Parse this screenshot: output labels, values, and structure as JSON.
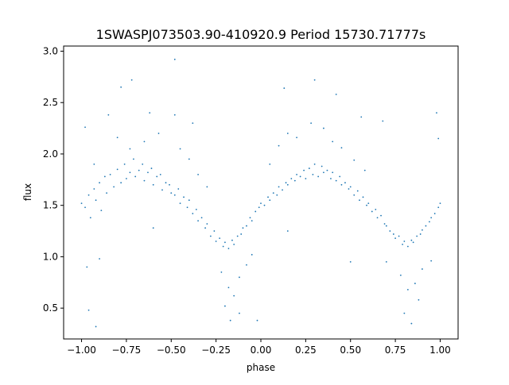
{
  "chart_data": {
    "type": "scatter",
    "title": "1SWASPJ073503.90-410920.9 Period 15730.71777s",
    "xlabel": "phase",
    "ylabel": "flux",
    "xlim": [
      -1.1,
      1.1
    ],
    "ylim": [
      0.2,
      3.05
    ],
    "xticks": [
      {
        "value": -1.0,
        "label": "−1.00"
      },
      {
        "value": -0.75,
        "label": "−0.75"
      },
      {
        "value": -0.5,
        "label": "−0.50"
      },
      {
        "value": -0.25,
        "label": "−0.25"
      },
      {
        "value": 0.0,
        "label": "0.00"
      },
      {
        "value": 0.25,
        "label": "0.25"
      },
      {
        "value": 0.5,
        "label": "0.50"
      },
      {
        "value": 0.75,
        "label": "0.75"
      },
      {
        "value": 1.0,
        "label": "1.00"
      }
    ],
    "yticks": [
      {
        "value": 0.5,
        "label": "0.5"
      },
      {
        "value": 1.0,
        "label": "1.0"
      },
      {
        "value": 1.5,
        "label": "1.5"
      },
      {
        "value": 2.0,
        "label": "2.0"
      },
      {
        "value": 2.5,
        "label": "2.5"
      },
      {
        "value": 3.0,
        "label": "3.0"
      }
    ],
    "grid": false,
    "legend": "none",
    "point_color": "#1f77b4",
    "series": [
      {
        "points": [
          [
            -1.0,
            1.52
          ],
          [
            -0.98,
            1.48
          ],
          [
            -0.96,
            1.6
          ],
          [
            -0.95,
            1.38
          ],
          [
            -0.93,
            1.66
          ],
          [
            -0.92,
            1.55
          ],
          [
            -0.9,
            1.72
          ],
          [
            -0.89,
            1.45
          ],
          [
            -0.87,
            1.78
          ],
          [
            -0.86,
            1.62
          ],
          [
            -0.84,
            1.8
          ],
          [
            -0.82,
            1.68
          ],
          [
            -0.8,
            1.85
          ],
          [
            -0.78,
            1.72
          ],
          [
            -0.76,
            1.9
          ],
          [
            -0.75,
            1.76
          ],
          [
            -0.73,
            1.82
          ],
          [
            -0.71,
            1.95
          ],
          [
            -0.7,
            1.78
          ],
          [
            -0.68,
            1.84
          ],
          [
            -0.66,
            1.9
          ],
          [
            -0.65,
            1.74
          ],
          [
            -0.63,
            1.82
          ],
          [
            -0.61,
            1.86
          ],
          [
            -0.6,
            1.7
          ],
          [
            -0.58,
            1.78
          ],
          [
            -0.56,
            1.8
          ],
          [
            -0.55,
            1.65
          ],
          [
            -0.53,
            1.72
          ],
          [
            -0.51,
            1.7
          ],
          [
            -0.5,
            1.62
          ],
          [
            -0.48,
            1.6
          ],
          [
            -0.46,
            1.66
          ],
          [
            -0.45,
            1.52
          ],
          [
            -0.43,
            1.58
          ],
          [
            -0.41,
            1.48
          ],
          [
            -0.4,
            1.55
          ],
          [
            -0.38,
            1.42
          ],
          [
            -0.36,
            1.46
          ],
          [
            -0.35,
            1.35
          ],
          [
            -0.33,
            1.38
          ],
          [
            -0.31,
            1.28
          ],
          [
            -0.3,
            1.32
          ],
          [
            -0.28,
            1.2
          ],
          [
            -0.26,
            1.25
          ],
          [
            -0.25,
            1.15
          ],
          [
            -0.23,
            1.18
          ],
          [
            -0.21,
            1.1
          ],
          [
            -0.2,
            1.14
          ],
          [
            -0.18,
            1.08
          ],
          [
            -0.16,
            1.16
          ],
          [
            -0.15,
            1.12
          ],
          [
            -0.13,
            1.2
          ],
          [
            -0.11,
            1.22
          ],
          [
            -0.1,
            1.28
          ],
          [
            -0.08,
            1.3
          ],
          [
            -0.06,
            1.38
          ],
          [
            -0.05,
            1.35
          ],
          [
            -0.03,
            1.44
          ],
          [
            -0.01,
            1.48
          ],
          [
            0.0,
            1.52
          ],
          [
            0.02,
            1.5
          ],
          [
            0.04,
            1.58
          ],
          [
            0.05,
            1.55
          ],
          [
            0.07,
            1.62
          ],
          [
            0.09,
            1.6
          ],
          [
            0.1,
            1.68
          ],
          [
            0.12,
            1.65
          ],
          [
            0.14,
            1.72
          ],
          [
            0.15,
            1.7
          ],
          [
            0.17,
            1.76
          ],
          [
            0.19,
            1.74
          ],
          [
            0.2,
            1.8
          ],
          [
            0.22,
            1.78
          ],
          [
            0.24,
            1.84
          ],
          [
            0.25,
            1.76
          ],
          [
            0.27,
            1.86
          ],
          [
            0.29,
            1.8
          ],
          [
            0.3,
            1.9
          ],
          [
            0.32,
            1.78
          ],
          [
            0.34,
            1.88
          ],
          [
            0.35,
            1.82
          ],
          [
            0.37,
            1.84
          ],
          [
            0.39,
            1.76
          ],
          [
            0.4,
            1.82
          ],
          [
            0.42,
            1.74
          ],
          [
            0.44,
            1.78
          ],
          [
            0.45,
            1.7
          ],
          [
            0.47,
            1.72
          ],
          [
            0.49,
            1.66
          ],
          [
            0.5,
            1.68
          ],
          [
            0.52,
            1.6
          ],
          [
            0.54,
            1.64
          ],
          [
            0.55,
            1.55
          ],
          [
            0.57,
            1.58
          ],
          [
            0.59,
            1.5
          ],
          [
            0.6,
            1.52
          ],
          [
            0.62,
            1.44
          ],
          [
            0.64,
            1.46
          ],
          [
            0.65,
            1.38
          ],
          [
            0.67,
            1.4
          ],
          [
            0.69,
            1.32
          ],
          [
            0.7,
            1.3
          ],
          [
            0.72,
            1.25
          ],
          [
            0.74,
            1.22
          ],
          [
            0.75,
            1.18
          ],
          [
            0.77,
            1.2
          ],
          [
            0.79,
            1.12
          ],
          [
            0.8,
            1.15
          ],
          [
            0.82,
            1.1
          ],
          [
            0.84,
            1.16
          ],
          [
            0.85,
            1.14
          ],
          [
            0.87,
            1.2
          ],
          [
            0.89,
            1.22
          ],
          [
            0.9,
            1.26
          ],
          [
            0.92,
            1.3
          ],
          [
            0.94,
            1.34
          ],
          [
            0.95,
            1.38
          ],
          [
            0.97,
            1.42
          ],
          [
            0.99,
            1.48
          ],
          [
            1.0,
            1.52
          ],
          [
            -0.98,
            2.26
          ],
          [
            -0.93,
            1.9
          ],
          [
            -0.9,
            0.98
          ],
          [
            -0.85,
            2.38
          ],
          [
            -0.8,
            2.16
          ],
          [
            -0.73,
            2.05
          ],
          [
            -0.65,
            2.12
          ],
          [
            -0.62,
            2.4
          ],
          [
            -0.57,
            2.2
          ],
          [
            -0.45,
            2.05
          ],
          [
            -0.4,
            1.95
          ],
          [
            -0.35,
            1.8
          ],
          [
            -0.3,
            1.68
          ],
          [
            -0.22,
            0.85
          ],
          [
            -0.18,
            0.7
          ],
          [
            -0.15,
            0.62
          ],
          [
            -0.12,
            0.8
          ],
          [
            -0.08,
            0.92
          ],
          [
            -0.05,
            1.02
          ],
          [
            0.05,
            1.9
          ],
          [
            0.1,
            2.08
          ],
          [
            0.15,
            2.2
          ],
          [
            0.2,
            2.16
          ],
          [
            0.28,
            2.3
          ],
          [
            0.35,
            2.25
          ],
          [
            0.4,
            2.12
          ],
          [
            0.45,
            2.06
          ],
          [
            0.52,
            1.94
          ],
          [
            0.58,
            1.84
          ],
          [
            0.7,
            0.95
          ],
          [
            0.78,
            0.82
          ],
          [
            0.82,
            0.68
          ],
          [
            0.86,
            0.74
          ],
          [
            0.9,
            0.88
          ],
          [
            0.95,
            0.96
          ],
          [
            -0.97,
            0.9
          ],
          [
            -0.96,
            0.48
          ],
          [
            -0.92,
            0.32
          ],
          [
            -0.78,
            2.65
          ],
          [
            -0.72,
            2.72
          ],
          [
            -0.48,
            2.38
          ],
          [
            -0.2,
            0.52
          ],
          [
            -0.17,
            0.38
          ],
          [
            -0.12,
            0.45
          ],
          [
            -0.38,
            2.3
          ],
          [
            0.13,
            2.64
          ],
          [
            0.3,
            2.72
          ],
          [
            0.42,
            2.58
          ],
          [
            0.56,
            2.36
          ],
          [
            0.8,
            0.45
          ],
          [
            0.84,
            0.35
          ],
          [
            0.88,
            0.58
          ],
          [
            0.98,
            2.4
          ],
          [
            0.99,
            2.15
          ],
          [
            -0.48,
            2.92
          ],
          [
            0.68,
            2.32
          ],
          [
            -0.6,
            1.28
          ],
          [
            0.15,
            1.25
          ],
          [
            -0.02,
            0.38
          ],
          [
            0.5,
            0.95
          ]
        ]
      }
    ]
  }
}
